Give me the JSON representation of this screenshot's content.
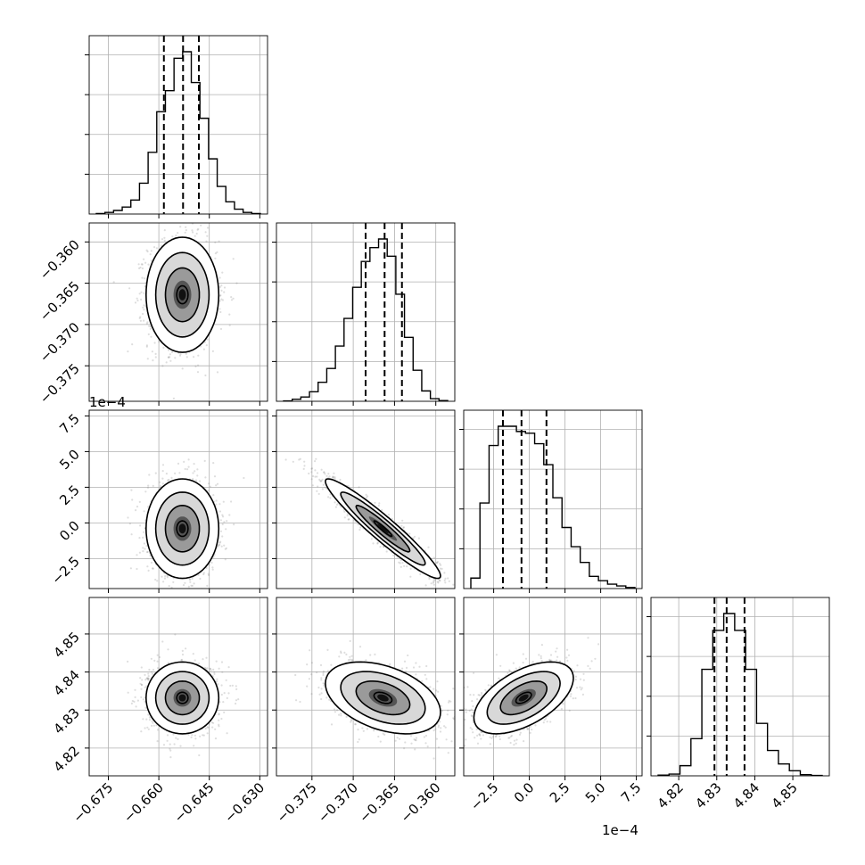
{
  "chart_data": {
    "type": "corner",
    "grid": true,
    "colors": {
      "line": "#000000",
      "grid": "#b0b0b0",
      "points": "#8a8a8a",
      "density_max": "#000000"
    },
    "parameters": [
      {
        "ticks": [
          "−0.675",
          "−0.660",
          "−0.645",
          "−0.630"
        ],
        "tick_values": [
          -0.675,
          -0.66,
          -0.645,
          -0.63
        ],
        "range": [
          -0.6807,
          -0.6277
        ],
        "offset_label": ""
      },
      {
        "ticks": [
          "−0.360",
          "−0.365",
          "−0.370",
          "−0.375",
          "−0.375",
          "−0.370",
          "−0.365",
          "−0.360"
        ],
        "tick_values": [
          -0.375,
          -0.37,
          -0.365,
          -0.36
        ],
        "tick_text": [
          "−0.375",
          "−0.370",
          "−0.365",
          "−0.360"
        ],
        "range": [
          -0.3793,
          -0.3577
        ],
        "offset_label": ""
      },
      {
        "tick_text": [
          "−2.5",
          "0.0",
          "2.5",
          "5.0",
          "7.5"
        ],
        "tick_values": [
          -2.5,
          0.0,
          2.5,
          5.0,
          7.5
        ],
        "range": [
          -4.6,
          7.9
        ],
        "offset_label": "1e−4"
      },
      {
        "tick_text": [
          "4.82",
          "4.83",
          "4.84",
          "4.85"
        ],
        "tick_values": [
          4.82,
          4.83,
          4.84,
          4.85
        ],
        "range": [
          4.8127,
          4.8596
        ],
        "offset_label": ""
      }
    ],
    "histograms": [
      {
        "counts": [
          0.3,
          1.0,
          2.2,
          4.3,
          8.6,
          19.0,
          38.0,
          63.0,
          76.0,
          96.0,
          100.0,
          81.0,
          59.0,
          34.0,
          17.0,
          7.5,
          3.0,
          1.0,
          0.3
        ],
        "quantile_lines": [
          -0.6585,
          -0.6528,
          -0.6481
        ]
      },
      {
        "counts": [
          0.2,
          1.2,
          2.5,
          5.5,
          11.0,
          19.0,
          32.0,
          48.0,
          66.0,
          81.0,
          89.0,
          94.0,
          84.0,
          62.0,
          37.0,
          18.0,
          6.0,
          1.5,
          0.4
        ],
        "quantile_lines": [
          -0.3685,
          -0.3662,
          -0.3641
        ]
      },
      {
        "counts": [
          6.0,
          49.0,
          82.0,
          93.0,
          93.0,
          90.0,
          89.0,
          83.0,
          71.0,
          52.0,
          35.0,
          24.0,
          15.0,
          7.0,
          4.5,
          2.5,
          1.5,
          0.6
        ],
        "quantile_lines": [
          -1.85,
          -0.55,
          1.2
        ]
      },
      {
        "counts": [
          0.4,
          1.0,
          6.0,
          22.0,
          63.0,
          86.0,
          96.0,
          86.0,
          63.0,
          31.0,
          15.0,
          7.0,
          3.0,
          0.7,
          0.2
        ],
        "quantile_lines": [
          4.8294,
          4.8326,
          4.8373
        ]
      }
    ],
    "pairs": [
      {
        "row": 1,
        "col": 0,
        "mean": [
          -0.653,
          -0.3664
        ],
        "sd": [
          0.0048,
          0.0031
        ],
        "corr": 0.0
      },
      {
        "row": 2,
        "col": 0,
        "mean": [
          -0.653,
          -0.4
        ],
        "sd": [
          0.0048,
          1.55
        ],
        "corr": 0.0
      },
      {
        "row": 2,
        "col": 1,
        "mean": [
          -0.3664,
          -0.4
        ],
        "sd": [
          0.0031,
          1.55
        ],
        "corr": -0.95
      },
      {
        "row": 3,
        "col": 0,
        "mean": [
          -0.653,
          4.8332
        ],
        "sd": [
          0.0048,
          0.0042
        ],
        "corr": 0.0
      },
      {
        "row": 3,
        "col": 1,
        "mean": [
          -0.3664,
          4.8332
        ],
        "sd": [
          0.0031,
          0.0042
        ],
        "corr": -0.4
      },
      {
        "row": 3,
        "col": 2,
        "mean": [
          -0.4,
          4.8332
        ],
        "sd": [
          1.55,
          0.0042
        ],
        "corr": 0.55
      }
    ]
  }
}
